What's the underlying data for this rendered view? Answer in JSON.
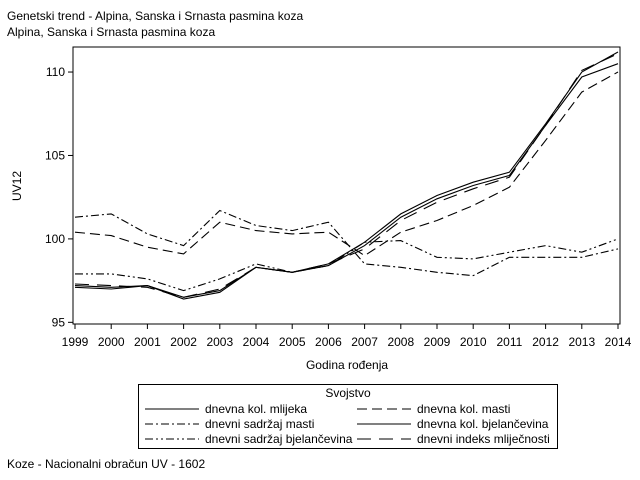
{
  "header": {
    "title": "Genetski trend - Alpina, Sanska i Srnasta pasmina koza",
    "subtitle": "Alpina, Sanska i Srnasta pasmina koza"
  },
  "footnote": "Koze - Nacionalni obračun UV - 1602",
  "chart_data": {
    "type": "line",
    "title": "Genetski trend - Alpina, Sanska i Srnasta pasmina koza",
    "subtitle": "Alpina, Sanska i Srnasta pasmina koza",
    "xlabel": "Godina rođenja",
    "ylabel": "UV12",
    "x": [
      1999,
      2000,
      2001,
      2002,
      2003,
      2004,
      2005,
      2006,
      2007,
      2008,
      2009,
      2010,
      2011,
      2012,
      2013,
      2014
    ],
    "xticks": [
      "1999",
      "2000",
      "2001",
      "2002",
      "2003",
      "2004",
      "2005",
      "2006",
      "2007",
      "2008",
      "2009",
      "2010",
      "2011",
      "2012",
      "2013",
      "2014"
    ],
    "yticks": [
      "95",
      "100",
      "105",
      "110"
    ],
    "ylim": [
      94.9,
      111.5
    ],
    "grid": false,
    "legend_title": "Svojstvo",
    "legend_position": "bottom",
    "series": [
      {
        "name": "dnevna kol. mlijeka",
        "dash": "solid",
        "values": [
          97.1,
          97.0,
          97.2,
          96.5,
          96.9,
          98.3,
          98.0,
          98.4,
          99.6,
          101.3,
          102.4,
          103.2,
          103.8,
          106.8,
          109.7,
          110.5
        ]
      },
      {
        "name": "dnevna kol. masti",
        "dash": "longdash",
        "values": [
          100.4,
          100.2,
          99.5,
          99.1,
          101.0,
          100.5,
          100.3,
          100.4,
          99.0,
          100.4,
          101.1,
          102.0,
          103.1,
          105.9,
          108.8,
          110.0
        ]
      },
      {
        "name": "dnevni sadržaj masti",
        "dash": "dashdot",
        "values": [
          101.3,
          101.5,
          100.3,
          99.6,
          101.7,
          100.8,
          100.5,
          101.0,
          98.5,
          98.3,
          98.0,
          97.8,
          98.9,
          98.9,
          98.9,
          99.4
        ]
      },
      {
        "name": "dnevna kol. bjelančevina",
        "dash": "solid",
        "values": [
          97.2,
          97.1,
          97.2,
          96.4,
          96.8,
          98.3,
          98.0,
          98.5,
          99.8,
          101.5,
          102.6,
          103.4,
          104.0,
          106.9,
          110.0,
          111.2
        ]
      },
      {
        "name": "dnevni sadržaj bjelančevina",
        "dash": "dashdotdot",
        "values": [
          97.9,
          97.9,
          97.6,
          96.9,
          97.6,
          98.5,
          98.0,
          98.4,
          99.8,
          99.9,
          98.9,
          98.8,
          99.2,
          99.6,
          99.2,
          100.0
        ]
      },
      {
        "name": "dnevni indeks mliječnosti",
        "dash": "longdash2",
        "values": [
          97.3,
          97.2,
          97.1,
          96.5,
          97.0,
          98.3,
          98.0,
          98.5,
          99.4,
          101.1,
          102.2,
          103.0,
          103.7,
          106.8,
          110.1,
          111.1
        ]
      }
    ]
  }
}
